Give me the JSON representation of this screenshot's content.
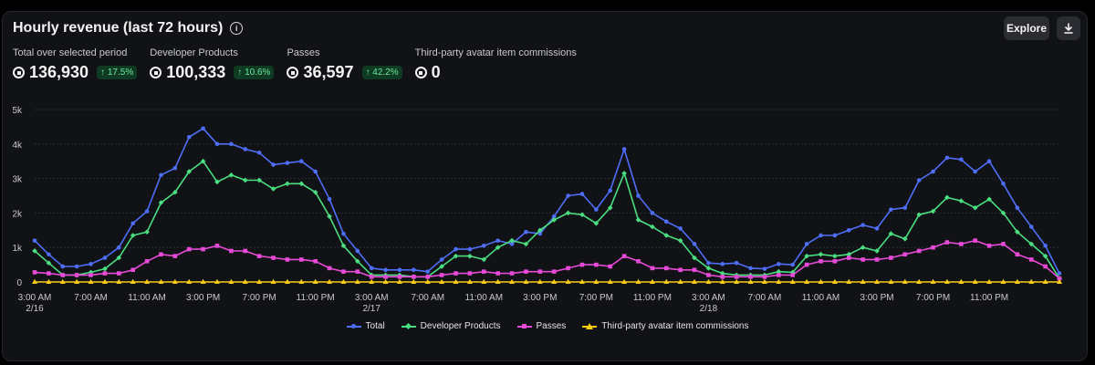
{
  "header": {
    "title": "Hourly revenue (last 72 hours)",
    "explore_label": "Explore"
  },
  "stats": [
    {
      "label": "Total over selected period",
      "value": "136,930",
      "change": "↑ 17.5%"
    },
    {
      "label": "Developer Products",
      "value": "100,333",
      "change": "↑ 10.6%"
    },
    {
      "label": "Passes",
      "value": "36,597",
      "change": "↑ 42.2%"
    },
    {
      "label": "Third-party avatar item commissions",
      "value": "0",
      "change": ""
    }
  ],
  "chart_data": {
    "type": "line",
    "ylim": [
      0,
      5000
    ],
    "y_ticks": [
      {
        "v": 0,
        "label": "0"
      },
      {
        "v": 1000,
        "label": "1k"
      },
      {
        "v": 2000,
        "label": "2k"
      },
      {
        "v": 3000,
        "label": "3k"
      },
      {
        "v": 4000,
        "label": "4k"
      },
      {
        "v": 5000,
        "label": "5k"
      }
    ],
    "x_ticks": [
      {
        "i": 0,
        "label": "3:00 AM",
        "sub": "2/16"
      },
      {
        "i": 4,
        "label": "7:00 AM"
      },
      {
        "i": 8,
        "label": "11:00 AM"
      },
      {
        "i": 12,
        "label": "3:00 PM"
      },
      {
        "i": 16,
        "label": "7:00 PM"
      },
      {
        "i": 20,
        "label": "11:00 PM"
      },
      {
        "i": 24,
        "label": "3:00 AM",
        "sub": "2/17"
      },
      {
        "i": 28,
        "label": "7:00 AM"
      },
      {
        "i": 32,
        "label": "11:00 AM"
      },
      {
        "i": 36,
        "label": "3:00 PM"
      },
      {
        "i": 40,
        "label": "7:00 PM"
      },
      {
        "i": 44,
        "label": "11:00 PM"
      },
      {
        "i": 48,
        "label": "3:00 AM",
        "sub": "2/18"
      },
      {
        "i": 52,
        "label": "7:00 AM"
      },
      {
        "i": 56,
        "label": "11:00 AM"
      },
      {
        "i": 60,
        "label": "3:00 PM"
      },
      {
        "i": 64,
        "label": "7:00 PM"
      },
      {
        "i": 68,
        "label": "11:00 PM"
      }
    ],
    "series": [
      {
        "name": "Total",
        "color": "#4f6ef7",
        "marker": "dot",
        "values": [
          1200,
          800,
          450,
          450,
          520,
          700,
          1000,
          1700,
          2050,
          3100,
          3300,
          4200,
          4450,
          4000,
          4000,
          3850,
          3750,
          3400,
          3450,
          3500,
          3200,
          2400,
          1400,
          900,
          400,
          350,
          350,
          350,
          300,
          650,
          950,
          950,
          1050,
          1200,
          1100,
          1450,
          1400,
          1900,
          2500,
          2550,
          2100,
          2650,
          3850,
          2500,
          2000,
          1750,
          1550,
          1100,
          550,
          520,
          550,
          400,
          380,
          520,
          500,
          1100,
          1350,
          1350,
          1500,
          1650,
          1550,
          2100,
          2150,
          2950,
          3200,
          3600,
          3550,
          3200,
          3500,
          2850,
          2150,
          1600,
          1050,
          250
        ]
      },
      {
        "name": "Developer Products",
        "color": "#4ade80",
        "marker": "diamond",
        "values": [
          900,
          550,
          200,
          200,
          280,
          380,
          700,
          1350,
          1450,
          2300,
          2600,
          3200,
          3500,
          2900,
          3100,
          2950,
          2950,
          2700,
          2850,
          2850,
          2600,
          1900,
          1050,
          600,
          200,
          200,
          200,
          150,
          150,
          450,
          750,
          750,
          650,
          1000,
          1200,
          1100,
          1500,
          1800,
          2000,
          1950,
          1700,
          2150,
          3150,
          1800,
          1600,
          1350,
          1200,
          700,
          400,
          250,
          200,
          200,
          200,
          300,
          280,
          750,
          800,
          750,
          800,
          1000,
          900,
          1400,
          1250,
          1950,
          2050,
          2450,
          2350,
          2150,
          2400,
          2000,
          1450,
          1100,
          750,
          100
        ]
      },
      {
        "name": "Passes",
        "color": "#e64ad7",
        "marker": "square",
        "values": [
          280,
          250,
          200,
          200,
          200,
          250,
          250,
          350,
          600,
          800,
          750,
          950,
          950,
          1050,
          900,
          900,
          750,
          700,
          650,
          650,
          600,
          400,
          300,
          300,
          150,
          150,
          150,
          150,
          150,
          200,
          250,
          250,
          300,
          250,
          250,
          300,
          300,
          300,
          400,
          500,
          500,
          450,
          750,
          600,
          400,
          400,
          350,
          350,
          200,
          150,
          150,
          150,
          150,
          200,
          200,
          500,
          600,
          600,
          700,
          650,
          650,
          700,
          800,
          900,
          1000,
          1150,
          1100,
          1200,
          1050,
          1100,
          800,
          650,
          450,
          100
        ]
      },
      {
        "name": "Third-party avatar item commissions",
        "color": "#facc15",
        "marker": "triangle",
        "values": [
          0,
          0,
          0,
          0,
          0,
          0,
          0,
          0,
          0,
          0,
          0,
          0,
          0,
          0,
          0,
          0,
          0,
          0,
          0,
          0,
          0,
          0,
          0,
          0,
          0,
          0,
          0,
          0,
          0,
          0,
          0,
          0,
          0,
          0,
          0,
          0,
          0,
          0,
          0,
          0,
          0,
          0,
          0,
          0,
          0,
          0,
          0,
          0,
          0,
          0,
          0,
          0,
          0,
          0,
          0,
          0,
          0,
          0,
          0,
          0,
          0,
          0,
          0,
          0,
          0,
          0,
          0,
          0,
          0,
          0,
          0,
          0,
          0,
          0
        ]
      }
    ],
    "grid": true,
    "legend": "bottom-center"
  }
}
